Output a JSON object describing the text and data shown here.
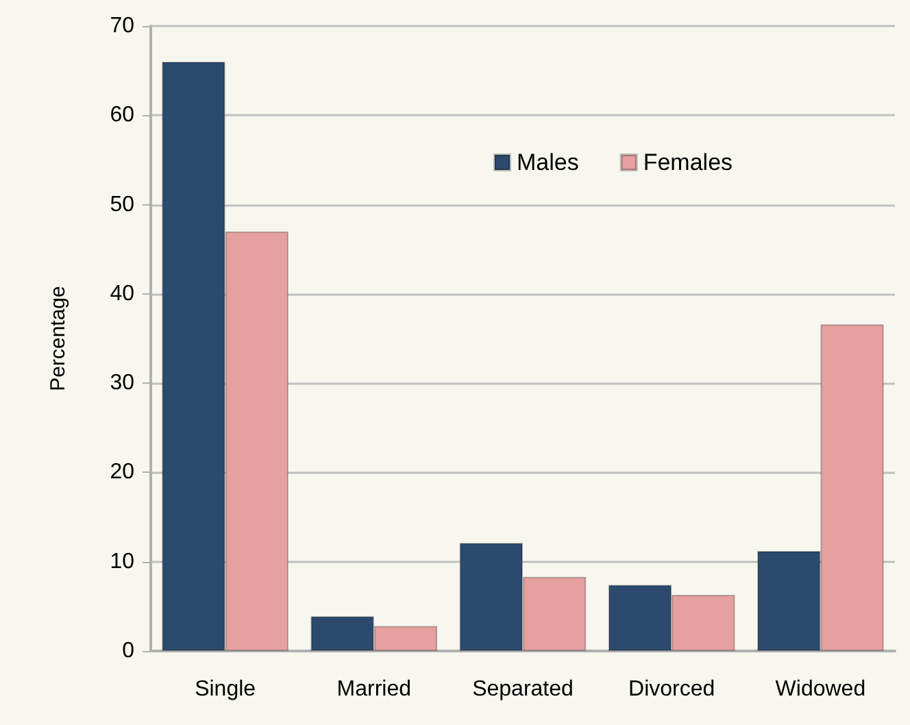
{
  "chart_data": {
    "type": "bar",
    "ylabel": "Percentage",
    "categories": [
      "Single",
      "Married",
      "Separated",
      "Divorced",
      "Widowed"
    ],
    "series": [
      {
        "name": "Males",
        "color": "#2c4a6e",
        "values": [
          66,
          3.9,
          12.1,
          7.4,
          11.2
        ]
      },
      {
        "name": "Females",
        "color": "#e6a0a0",
        "values": [
          47,
          2.8,
          8.3,
          6.3,
          36.6
        ]
      }
    ],
    "ylim": [
      0,
      70
    ],
    "yticks": [
      0,
      10,
      20,
      30,
      40,
      50,
      60,
      70
    ],
    "grid": "y",
    "legend": "top right"
  }
}
